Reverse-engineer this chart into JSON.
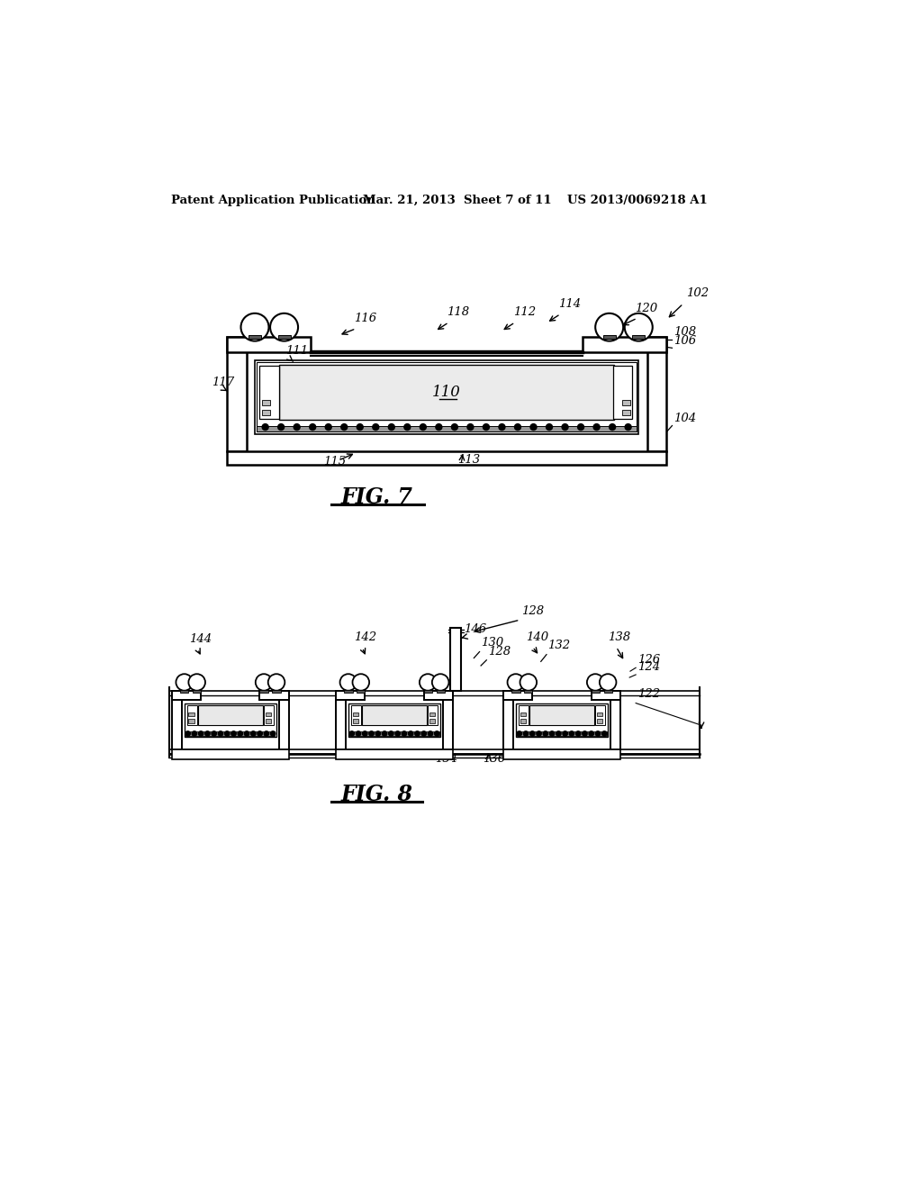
{
  "bg_color": "#ffffff",
  "header_left": "Patent Application Publication",
  "header_mid": "Mar. 21, 2013  Sheet 7 of 11",
  "header_right": "US 2013/0069218 A1",
  "fig7_label": "FIG. 7",
  "fig8_label": "FIG. 8"
}
